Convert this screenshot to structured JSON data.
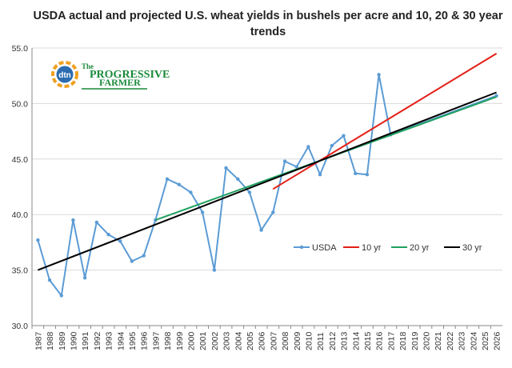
{
  "chart_data": {
    "type": "line",
    "title": "USDA  actual and projected U.S. wheat yields in bushels per acre and 10, 20 & 30 year trends",
    "xlabel": "",
    "ylabel": "",
    "ylim": [
      30.0,
      55.0
    ],
    "yticks": [
      "30.0",
      "35.0",
      "40.0",
      "45.0",
      "50.0",
      "55.0"
    ],
    "grid": true,
    "legend": "bottom-right inside",
    "x": [
      1987,
      1988,
      1989,
      1990,
      1991,
      1992,
      1993,
      1994,
      1995,
      1996,
      1997,
      1998,
      1999,
      2000,
      2001,
      2002,
      2003,
      2004,
      2005,
      2006,
      2007,
      2008,
      2009,
      2010,
      2011,
      2012,
      2013,
      2014,
      2015,
      2016,
      2017,
      2018,
      2019,
      2020,
      2021,
      2022,
      2023,
      2024,
      2025,
      2026
    ],
    "series": [
      {
        "name": "USDA",
        "color": "#5b9bd5",
        "marker": true,
        "x": [
          1987,
          1988,
          1989,
          1990,
          1991,
          1992,
          1993,
          1994,
          1995,
          1996,
          1997,
          1998,
          1999,
          2000,
          2001,
          2002,
          2003,
          2004,
          2005,
          2006,
          2007,
          2008,
          2009,
          2010,
          2011,
          2012,
          2013,
          2014,
          2015,
          2016,
          2017,
          2026
        ],
        "values": [
          37.7,
          34.1,
          32.7,
          39.5,
          34.3,
          39.3,
          38.2,
          37.6,
          35.8,
          36.3,
          39.5,
          43.2,
          42.7,
          42.0,
          40.2,
          35.0,
          44.2,
          43.2,
          42.0,
          38.6,
          40.2,
          44.8,
          44.3,
          46.1,
          43.6,
          46.2,
          47.1,
          43.7,
          43.6,
          52.6,
          47.2,
          50.7
        ]
      },
      {
        "name": "10 yr",
        "color": "#e32017",
        "marker": false,
        "x": [
          2007,
          2026
        ],
        "values": [
          42.3,
          54.5
        ]
      },
      {
        "name": "20 yr",
        "color": "#20a060",
        "marker": false,
        "x": [
          1997,
          2026
        ],
        "values": [
          39.5,
          50.6
        ]
      },
      {
        "name": "30 yr",
        "color": "#000000",
        "marker": false,
        "x": [
          1987,
          2026
        ],
        "values": [
          35.0,
          51.0
        ]
      }
    ]
  },
  "logo": {
    "badge": "dtn",
    "line1": "The",
    "line2": "PROGRESSIVE",
    "line3": "FARMER",
    "color": "#1a8a3a",
    "badge_orange": "#f0a020",
    "badge_blue": "#2b6cb0"
  }
}
